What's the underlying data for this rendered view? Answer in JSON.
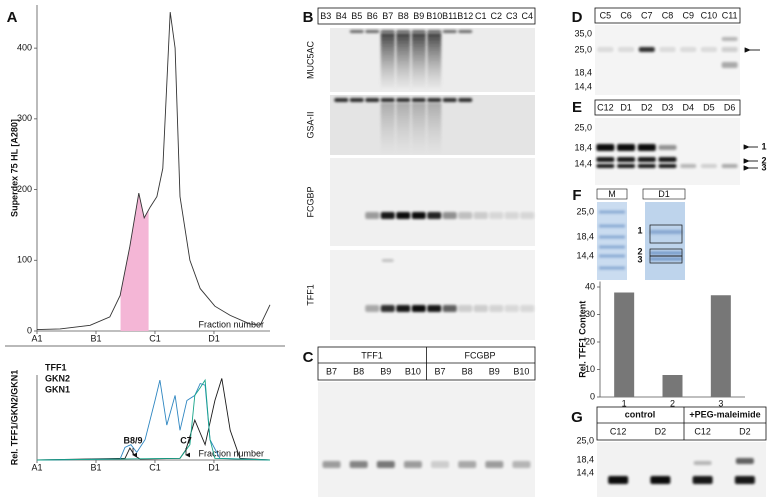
{
  "chart_data": [
    {
      "type": "line",
      "y_label": "Superdex 75 HL [A280]",
      "x_label": "Fraction number",
      "xlim": [
        0,
        47.4
      ],
      "ylim": [
        0,
        461
      ],
      "xticks": [
        {
          "value": 0,
          "label": "A1"
        },
        {
          "value": 12,
          "label": "B1"
        },
        {
          "value": 24,
          "label": "C1"
        },
        {
          "value": 36,
          "label": "D1"
        }
      ],
      "yticks": [
        0,
        100,
        200,
        300,
        400
      ],
      "x": [
        0,
        4.7,
        10.8,
        14.8,
        16.9,
        18.9,
        20.7,
        21.8,
        23.0,
        24.4,
        25.6,
        27.1,
        28.1,
        29.1,
        31.1,
        33.2,
        36.2,
        39.3,
        43.3,
        45.4,
        47.4
      ],
      "values": [
        2,
        3,
        8,
        20,
        50,
        120,
        195,
        160,
        175,
        190,
        230,
        451,
        400,
        190,
        100,
        60,
        35,
        22,
        10,
        8,
        37
      ],
      "color": "#333333",
      "shade": {
        "x_range": [
          17,
          22.7
        ],
        "color": "#f4b6d6"
      }
    },
    {
      "type": "line",
      "y_label": "Rel. TFF1/GKN2/GKN1",
      "x_label": "Fraction number",
      "xlim": [
        0,
        47.4
      ],
      "ylim": [
        0,
        1
      ],
      "xticks": [
        {
          "value": 0,
          "label": "A1"
        },
        {
          "value": 12,
          "label": "B1"
        },
        {
          "value": 24,
          "label": "C1"
        },
        {
          "value": 36,
          "label": "D1"
        }
      ],
      "series": [
        {
          "name": "TFF1",
          "color": "#1a1a1a",
          "x": [
            0,
            17.9,
            18.9,
            19.9,
            21,
            29.1,
            30.3,
            32.1,
            34.2,
            36.2,
            37.6,
            39.3,
            41.3,
            47.4
          ],
          "values": [
            0,
            0.02,
            0.14,
            0.05,
            0.01,
            0.02,
            0.12,
            0.47,
            0.18,
            0.7,
            0.96,
            0.35,
            0.02,
            0
          ]
        },
        {
          "name": "GKN2",
          "color": "#2e86c1",
          "x": [
            0,
            16.9,
            17.9,
            19.1,
            20.3,
            22.0,
            24.0,
            25.0,
            26.4,
            28.1,
            29.1,
            30.5,
            32.1,
            33.2,
            34.2,
            35.2,
            37.2,
            47.4
          ],
          "values": [
            0,
            0.01,
            0.15,
            0.18,
            0.09,
            0.24,
            0.7,
            0.94,
            0.41,
            0.76,
            0.35,
            0.7,
            0.76,
            0.9,
            0.88,
            0.24,
            0.02,
            0
          ]
        },
        {
          "name": "GKN1",
          "color": "#17a589",
          "x": [
            0,
            29.1,
            31.1,
            32.1,
            33.2,
            34.2,
            35.2,
            36.2,
            47.4
          ],
          "values": [
            0,
            0.02,
            0.18,
            0.76,
            0.85,
            0.94,
            0.24,
            0.02,
            0
          ]
        }
      ],
      "annotations": [
        "B8/9",
        "C7"
      ]
    },
    {
      "type": "bar",
      "y_label": "Rel. TFF1 Content",
      "categories": [
        "1",
        "2",
        "3"
      ],
      "values": [
        38,
        8,
        37
      ],
      "color": "#777777",
      "ylim": [
        0,
        42
      ],
      "yticks": [
        0,
        10,
        20,
        30,
        40
      ]
    }
  ],
  "panel_labels": [
    "A",
    "B",
    "C",
    "D",
    "E",
    "F",
    "G"
  ],
  "panel_b": {
    "lanes": [
      "B3",
      "B4",
      "B5",
      "B6",
      "B7",
      "B8",
      "B9",
      "B10",
      "B11",
      "B12",
      "C1",
      "C2",
      "C3",
      "C4"
    ],
    "rows": [
      "MUC5AC",
      "GSA-II",
      "FCGBP",
      "TFF1"
    ]
  },
  "panel_c": {
    "groups": [
      "TFF1",
      "FCGBP"
    ],
    "lanes": [
      "B7",
      "B8",
      "B9",
      "B10",
      "B7",
      "B8",
      "B9",
      "B10"
    ]
  },
  "panel_d": {
    "lanes": [
      "C5",
      "C6",
      "C7",
      "C8",
      "C9",
      "C10",
      "C11"
    ],
    "markers": [
      "35,0",
      "25,0",
      "18,4",
      "14,4"
    ]
  },
  "panel_e": {
    "lanes": [
      "C12",
      "D1",
      "D2",
      "D3",
      "D4",
      "D5",
      "D6"
    ],
    "markers": [
      "25,0",
      "18,4",
      "14,4"
    ],
    "bands": [
      "1",
      "2",
      "3"
    ]
  },
  "panel_f": {
    "lanes": [
      "M",
      "D1"
    ],
    "markers": [
      "25,0",
      "18,4",
      "14,4"
    ],
    "bands": [
      "1",
      "2",
      "3"
    ]
  },
  "panel_g": {
    "groups": [
      "control",
      "+PEG-maleimide"
    ],
    "lanes": [
      "C12",
      "D2",
      "C12",
      "D2"
    ],
    "markers": [
      "25,0",
      "18,4",
      "14,4"
    ]
  }
}
